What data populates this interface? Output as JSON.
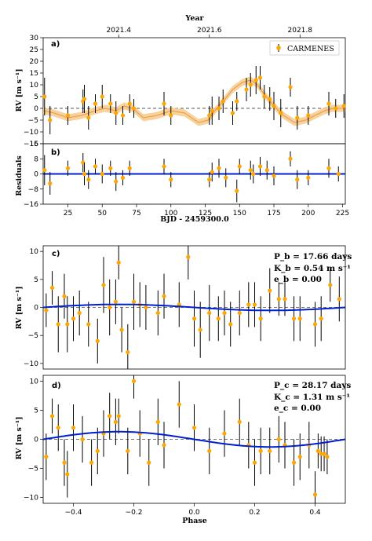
{
  "chart_data": [
    {
      "panel_label": "a)",
      "type": "scatter",
      "top_axis_label": "Year",
      "top_ticks": [
        "2021.4",
        "2021.6",
        "2021.8"
      ],
      "top_tick_x": [
        62,
        128,
        194
      ],
      "ylabel": "RV [m s⁻¹]",
      "ylim": [
        -15,
        30
      ],
      "yticks": [
        30,
        25,
        20,
        15,
        10,
        5,
        0,
        -5,
        -10,
        -15
      ],
      "xlim": [
        7,
        227
      ],
      "legend_label": "CARMENES",
      "legend_position": "top-right",
      "color_points": "#ffa500",
      "color_model": "#e39a4a",
      "color_band": "#f7c98a",
      "model_x": [
        7,
        15,
        25,
        35,
        45,
        52,
        60,
        66,
        72,
        80,
        90,
        100,
        110,
        120,
        127,
        132,
        138,
        145,
        152,
        158,
        163,
        168,
        175,
        182,
        190,
        198,
        205,
        212,
        218,
        227
      ],
      "model_y": [
        -1,
        -2,
        -4,
        -3,
        -1,
        0,
        -1,
        1,
        0,
        -4,
        -3,
        -1,
        -2,
        -6,
        -5,
        -1,
        3,
        8,
        11,
        12,
        10,
        6,
        1,
        -3,
        -6,
        -5,
        -3,
        -1,
        0,
        0
      ],
      "band_half_width": 1.5,
      "points": [
        [
          8,
          5,
          8
        ],
        [
          12,
          -5,
          6
        ],
        [
          25,
          -3,
          4
        ],
        [
          36,
          3,
          5
        ],
        [
          37,
          4,
          6
        ],
        [
          40,
          -4,
          5
        ],
        [
          45,
          2,
          4
        ],
        [
          50,
          5,
          5
        ],
        [
          56,
          2,
          4
        ],
        [
          60,
          -2,
          5
        ],
        [
          65,
          -3,
          4
        ],
        [
          70,
          2,
          4
        ],
        [
          73,
          0,
          4
        ],
        [
          95,
          2,
          5
        ],
        [
          100,
          -3,
          4
        ],
        [
          128,
          -3,
          4
        ],
        [
          130,
          -1,
          6
        ],
        [
          135,
          0,
          5
        ],
        [
          138,
          3,
          5
        ],
        [
          145,
          -2,
          5
        ],
        [
          148,
          3,
          4
        ],
        [
          155,
          8,
          5
        ],
        [
          158,
          10,
          5
        ],
        [
          162,
          12,
          6
        ],
        [
          165,
          13,
          5
        ],
        [
          168,
          5,
          5
        ],
        [
          172,
          4,
          5
        ],
        [
          175,
          1,
          6
        ],
        [
          180,
          -2,
          6
        ],
        [
          187,
          9,
          4
        ],
        [
          192,
          -4,
          5
        ],
        [
          200,
          -3,
          4
        ],
        [
          215,
          2,
          5
        ],
        [
          220,
          0,
          4
        ],
        [
          226,
          1,
          5
        ]
      ]
    },
    {
      "panel_label": "b)",
      "type": "scatter",
      "ylabel": "Residuals",
      "ylim": [
        -16,
        16
      ],
      "yticks": [
        16,
        8,
        0,
        -8,
        -16
      ],
      "xlabel": "BJD - 2459300.0",
      "xlim": [
        7,
        227
      ],
      "xticks": [
        25,
        50,
        75,
        100,
        125,
        150,
        175,
        200,
        225
      ],
      "points": [
        [
          8,
          2,
          8
        ],
        [
          12,
          -5,
          6
        ],
        [
          25,
          3,
          4
        ],
        [
          36,
          6,
          5
        ],
        [
          37,
          0,
          6
        ],
        [
          40,
          -3,
          5
        ],
        [
          45,
          4,
          4
        ],
        [
          50,
          0,
          5
        ],
        [
          56,
          3,
          4
        ],
        [
          60,
          -4,
          5
        ],
        [
          65,
          -2,
          4
        ],
        [
          70,
          3,
          4
        ],
        [
          95,
          4,
          4
        ],
        [
          100,
          -3,
          4
        ],
        [
          128,
          -3,
          4
        ],
        [
          130,
          1,
          5
        ],
        [
          135,
          3,
          5
        ],
        [
          140,
          -2,
          5
        ],
        [
          148,
          -9,
          6
        ],
        [
          150,
          4,
          4
        ],
        [
          158,
          2,
          5
        ],
        [
          160,
          0,
          5
        ],
        [
          165,
          4,
          5
        ],
        [
          170,
          2,
          5
        ],
        [
          175,
          -1,
          5
        ],
        [
          187,
          8,
          4
        ],
        [
          192,
          -3,
          5
        ],
        [
          200,
          -2,
          4
        ],
        [
          215,
          3,
          5
        ],
        [
          222,
          0,
          4
        ]
      ]
    },
    {
      "panel_label": "c)",
      "type": "scatter",
      "ylabel": "RV [m s⁻¹]",
      "ylim": [
        -11,
        11
      ],
      "yticks": [
        10,
        5,
        0,
        -5,
        -10
      ],
      "xlim": [
        -0.5,
        0.5
      ],
      "period_line": "P_b = 17.66 days",
      "amp_line": "K_b = 0.54 m s⁻¹",
      "ecc_line": "e_b = 0.00",
      "amplitude": 0.54,
      "phase_peak": -0.25,
      "points": [
        [
          -0.49,
          -0.5,
          3
        ],
        [
          -0.47,
          3.5,
          3
        ],
        [
          -0.45,
          -3,
          5
        ],
        [
          -0.43,
          2,
          4
        ],
        [
          -0.42,
          -3,
          5
        ],
        [
          -0.4,
          -2,
          4
        ],
        [
          -0.38,
          -1,
          4
        ],
        [
          -0.35,
          -3,
          4
        ],
        [
          -0.32,
          -6,
          4
        ],
        [
          -0.3,
          4,
          5
        ],
        [
          -0.28,
          0,
          5
        ],
        [
          -0.26,
          1,
          4
        ],
        [
          -0.25,
          8,
          3
        ],
        [
          -0.24,
          -4,
          4
        ],
        [
          -0.22,
          -8,
          5
        ],
        [
          -0.2,
          1,
          5
        ],
        [
          -0.18,
          0.5,
          4
        ],
        [
          -0.16,
          0,
          4
        ],
        [
          -0.12,
          -1,
          4
        ],
        [
          -0.1,
          2,
          4
        ],
        [
          -0.05,
          0.5,
          4
        ],
        [
          -0.02,
          9,
          4
        ],
        [
          0.0,
          -2,
          5
        ],
        [
          0.02,
          -4,
          5
        ],
        [
          0.05,
          -1,
          5
        ],
        [
          0.08,
          -2,
          4
        ],
        [
          0.1,
          -1,
          4
        ],
        [
          0.12,
          -3,
          4
        ],
        [
          0.15,
          -1,
          4
        ],
        [
          0.18,
          0.5,
          4
        ],
        [
          0.2,
          0.5,
          4
        ],
        [
          0.22,
          -2,
          4
        ],
        [
          0.25,
          3,
          4
        ],
        [
          0.28,
          1.5,
          3
        ],
        [
          0.3,
          1.5,
          3
        ],
        [
          0.33,
          -2,
          4
        ],
        [
          0.35,
          -2,
          4
        ],
        [
          0.4,
          -3,
          4
        ],
        [
          0.42,
          -2,
          4
        ],
        [
          0.45,
          4,
          3
        ],
        [
          0.48,
          1.5,
          4
        ]
      ]
    },
    {
      "panel_label": "d)",
      "type": "scatter",
      "ylabel": "RV [m s⁻¹]",
      "ylim": [
        -11,
        11
      ],
      "yticks": [
        10,
        5,
        0,
        -5,
        -10
      ],
      "xlabel": "Phase",
      "xlim": [
        -0.5,
        0.5
      ],
      "xticks": [
        -0.4,
        -0.2,
        0.0,
        0.2,
        0.4
      ],
      "period_line": "P_c = 28.17 days",
      "amp_line": "K_c = 1.31 m s⁻¹",
      "ecc_line": "e_c = 0.00",
      "amplitude": 1.31,
      "phase_peak": -0.25,
      "points": [
        [
          -0.49,
          -3,
          4
        ],
        [
          -0.47,
          4,
          3
        ],
        [
          -0.45,
          2,
          4
        ],
        [
          -0.43,
          -4,
          4
        ],
        [
          -0.42,
          -6,
          4
        ],
        [
          -0.4,
          2,
          4
        ],
        [
          -0.37,
          0,
          4
        ],
        [
          -0.34,
          -4,
          4
        ],
        [
          -0.32,
          -2,
          4
        ],
        [
          -0.3,
          1,
          4
        ],
        [
          -0.28,
          4,
          4
        ],
        [
          -0.26,
          3,
          4
        ],
        [
          -0.25,
          4,
          3
        ],
        [
          -0.22,
          -2,
          4
        ],
        [
          -0.2,
          10,
          3
        ],
        [
          -0.18,
          1,
          4
        ],
        [
          -0.15,
          -4,
          4
        ],
        [
          -0.12,
          3,
          4
        ],
        [
          -0.1,
          -1,
          4
        ],
        [
          -0.05,
          6,
          4
        ],
        [
          0.0,
          2,
          4
        ],
        [
          0.05,
          -2,
          4
        ],
        [
          0.1,
          1,
          4
        ],
        [
          0.15,
          3,
          4
        ],
        [
          0.18,
          -1,
          4
        ],
        [
          0.2,
          -4,
          4
        ],
        [
          0.22,
          -2,
          4
        ],
        [
          0.25,
          -2,
          4
        ],
        [
          0.28,
          0,
          4
        ],
        [
          0.3,
          -1,
          4
        ],
        [
          0.33,
          -4,
          4
        ],
        [
          0.35,
          -3,
          4
        ],
        [
          0.38,
          -1,
          4
        ],
        [
          0.4,
          -9.5,
          4
        ],
        [
          0.41,
          -2,
          3
        ],
        [
          0.42,
          -2.5,
          3
        ],
        [
          0.43,
          -2.5,
          3
        ],
        [
          0.44,
          -3,
          3
        ]
      ]
    }
  ]
}
